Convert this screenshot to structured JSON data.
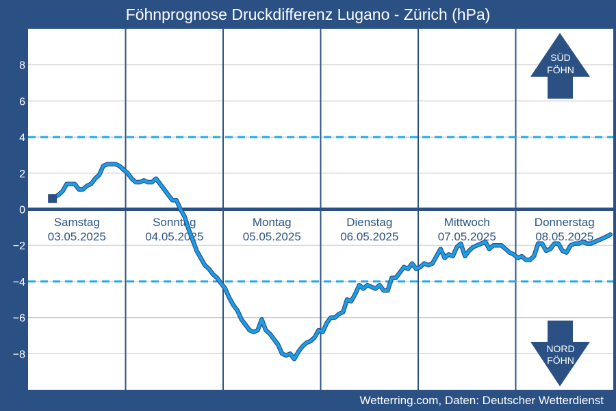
{
  "header": {
    "title": "Föhnprognose Druckdifferenz Lugano - Zürich (hPa)"
  },
  "footer": {
    "credit": "Wetterring.com, Daten: Deutscher Wetterdienst"
  },
  "indicators": {
    "south": {
      "line1": "SÜD",
      "line2": "FÖHN"
    },
    "north": {
      "line1": "NORD",
      "line2": "FÖHN"
    }
  },
  "colors": {
    "background": "#2b5184",
    "plot": "#ffffff",
    "grid": "#cccccc",
    "day_divider": "#2b5184",
    "series": "#1a9fe8",
    "series_outline": "#2b5184",
    "threshold": "#1ea9ea",
    "zero_line": "#2b5184"
  },
  "chart_data": {
    "type": "line",
    "title": "Föhnprognose Druckdifferenz Lugano - Zürich (hPa)",
    "ylabel": "",
    "xlabel": "",
    "ylim": [
      -10,
      10
    ],
    "xlim": [
      0,
      144
    ],
    "x_unit": "hours from 03.05.2025 00:00",
    "yticks": [
      -8,
      -6,
      -4,
      -2,
      0,
      2,
      4,
      6,
      8
    ],
    "grid": true,
    "thresholds": [
      4,
      -4
    ],
    "days": [
      {
        "name": "Samstag",
        "date": "03.05.2025"
      },
      {
        "name": "Sonntag",
        "date": "04.05.2025"
      },
      {
        "name": "Montag",
        "date": "05.05.2025"
      },
      {
        "name": "Dienstag",
        "date": "06.05.2025"
      },
      {
        "name": "Mittwoch",
        "date": "07.05.2025"
      },
      {
        "name": "Donnerstag",
        "date": "08.05.2025"
      }
    ],
    "series": [
      {
        "values": [
          [
            6,
            0.6
          ],
          [
            7.5,
            0.8
          ],
          [
            8.5,
            1.0
          ],
          [
            9.5,
            1.4
          ],
          [
            10.5,
            1.4
          ],
          [
            11.5,
            1.4
          ],
          [
            12.5,
            1.1
          ],
          [
            13.5,
            1.1
          ],
          [
            14.5,
            1.3
          ],
          [
            15.5,
            1.4
          ],
          [
            16.5,
            1.7
          ],
          [
            17.5,
            1.9
          ],
          [
            18.5,
            2.4
          ],
          [
            19.5,
            2.5
          ],
          [
            20.5,
            2.5
          ],
          [
            21.5,
            2.5
          ],
          [
            22.5,
            2.4
          ],
          [
            23.5,
            2.2
          ],
          [
            24.5,
            2.0
          ],
          [
            25.5,
            1.7
          ],
          [
            26.5,
            1.5
          ],
          [
            27.5,
            1.5
          ],
          [
            28.5,
            1.6
          ],
          [
            29.5,
            1.5
          ],
          [
            30.5,
            1.5
          ],
          [
            31.5,
            1.7
          ],
          [
            32.5,
            1.4
          ],
          [
            33.5,
            1.1
          ],
          [
            34.5,
            0.8
          ],
          [
            35.5,
            0.5
          ],
          [
            36.5,
            0.5
          ],
          [
            37.5,
            0.0
          ],
          [
            38.5,
            -0.4
          ],
          [
            39.5,
            -1.1
          ],
          [
            40.5,
            -1.7
          ],
          [
            41.5,
            -2.3
          ],
          [
            42.5,
            -2.7
          ],
          [
            43.5,
            -3.1
          ],
          [
            44.5,
            -3.3
          ],
          [
            45.5,
            -3.6
          ],
          [
            46.5,
            -3.8
          ],
          [
            47.5,
            -4.1
          ],
          [
            48.5,
            -4.4
          ],
          [
            49.5,
            -4.9
          ],
          [
            50.5,
            -5.3
          ],
          [
            51.5,
            -5.6
          ],
          [
            52.5,
            -6.1
          ],
          [
            53.5,
            -6.4
          ],
          [
            54.5,
            -6.7
          ],
          [
            55.5,
            -6.8
          ],
          [
            56.5,
            -6.7
          ],
          [
            57.5,
            -6.1
          ],
          [
            58.5,
            -6.7
          ],
          [
            59.5,
            -6.9
          ],
          [
            60.5,
            -7.2
          ],
          [
            61.5,
            -7.5
          ],
          [
            62.5,
            -8.0
          ],
          [
            63.5,
            -8.1
          ],
          [
            64.5,
            -8.0
          ],
          [
            65.5,
            -8.3
          ],
          [
            66.5,
            -7.9
          ],
          [
            67.5,
            -7.6
          ],
          [
            68.5,
            -7.4
          ],
          [
            69.5,
            -7.3
          ],
          [
            70.5,
            -7.1
          ],
          [
            71.5,
            -6.7
          ],
          [
            72.5,
            -6.8
          ],
          [
            73.5,
            -6.3
          ],
          [
            74.5,
            -6.0
          ],
          [
            75.5,
            -6.0
          ],
          [
            76.5,
            -5.8
          ],
          [
            77.5,
            -5.7
          ],
          [
            78.5,
            -5.0
          ],
          [
            79.5,
            -5.1
          ],
          [
            80.5,
            -4.7
          ],
          [
            81.5,
            -4.2
          ],
          [
            82.5,
            -4.4
          ],
          [
            83.5,
            -4.2
          ],
          [
            84.5,
            -4.3
          ],
          [
            85.5,
            -4.4
          ],
          [
            86.5,
            -4.2
          ],
          [
            87.5,
            -4.5
          ],
          [
            88.5,
            -4.5
          ],
          [
            89.5,
            -3.8
          ],
          [
            90.5,
            -3.8
          ],
          [
            91.5,
            -3.5
          ],
          [
            92.5,
            -3.2
          ],
          [
            93.5,
            -3.3
          ],
          [
            94.5,
            -3.0
          ],
          [
            95.5,
            -3.3
          ],
          [
            96.5,
            -3.2
          ],
          [
            97.5,
            -3.0
          ],
          [
            98.5,
            -3.1
          ],
          [
            99.5,
            -3.0
          ],
          [
            100.5,
            -2.6
          ],
          [
            101.5,
            -2.2
          ],
          [
            102.5,
            -2.7
          ],
          [
            103.5,
            -2.5
          ],
          [
            104.5,
            -2.6
          ],
          [
            105.5,
            -2.1
          ],
          [
            106.5,
            -1.9
          ],
          [
            107.5,
            -2.6
          ],
          [
            108.5,
            -2.3
          ],
          [
            109.5,
            -2.1
          ],
          [
            110.5,
            -2.0
          ],
          [
            111.5,
            -1.9
          ],
          [
            112.5,
            -1.8
          ],
          [
            113.5,
            -2.2
          ],
          [
            114.5,
            -2.0
          ],
          [
            115.5,
            -2.0
          ],
          [
            116.5,
            -2.0
          ],
          [
            117.5,
            -2.2
          ],
          [
            118.5,
            -2.4
          ],
          [
            119.5,
            -2.5
          ],
          [
            120.5,
            -2.7
          ],
          [
            121.5,
            -2.6
          ],
          [
            122.5,
            -2.8
          ],
          [
            123.5,
            -2.8
          ],
          [
            124.5,
            -2.6
          ],
          [
            125.5,
            -1.9
          ],
          [
            126.5,
            -1.9
          ],
          [
            127.5,
            -2.3
          ],
          [
            128.5,
            -2.2
          ],
          [
            129.5,
            -1.9
          ],
          [
            130.5,
            -1.9
          ],
          [
            131.5,
            -2.3
          ],
          [
            132.5,
            -2.4
          ],
          [
            133.5,
            -2.0
          ],
          [
            134.5,
            -1.9
          ],
          [
            135.5,
            -1.9
          ],
          [
            136.5,
            -1.8
          ],
          [
            137.5,
            -1.9
          ],
          [
            138.5,
            -1.9
          ],
          [
            139.5,
            -1.8
          ],
          [
            140.5,
            -1.7
          ],
          [
            141.5,
            -1.6
          ],
          [
            142.5,
            -1.5
          ],
          [
            143.3,
            -1.4
          ]
        ]
      }
    ],
    "marker": {
      "x": 6,
      "y": 0.6
    }
  }
}
